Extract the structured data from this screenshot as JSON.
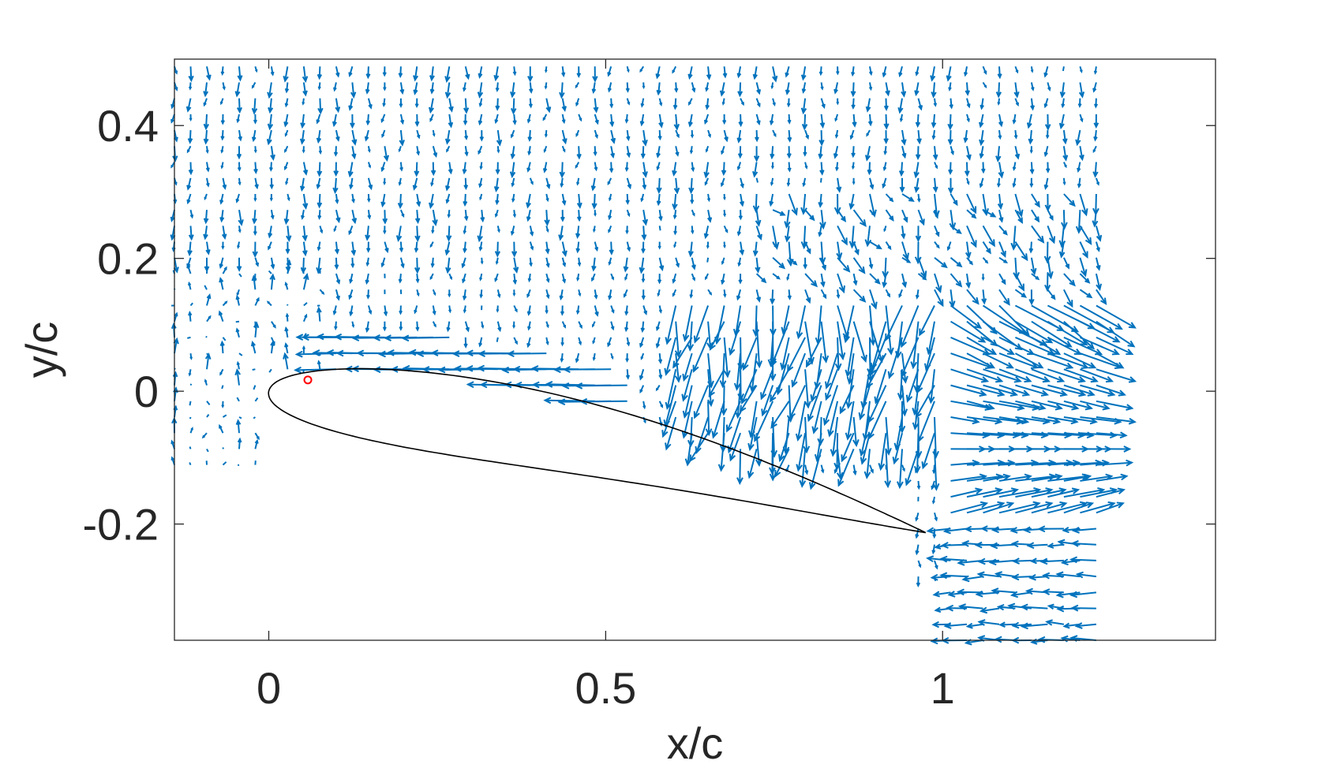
{
  "chart_data": {
    "type": "quiver",
    "xlabel": "x/c",
    "ylabel": "y/c",
    "xlim": [
      -0.14,
      1.405
    ],
    "ylim": [
      -0.375,
      0.5
    ],
    "xticks": [
      0,
      0.5,
      1
    ],
    "xtick_labels": [
      "0",
      "0.5",
      "1"
    ],
    "yticks": [
      -0.2,
      0,
      0.2,
      0.4
    ],
    "ytick_labels": [
      "-0.2",
      "0",
      "0.2",
      "0.4"
    ],
    "grid": false,
    "box": true,
    "colors": {
      "vectors": "#0072BD",
      "airfoil": "#000000",
      "marker": "#FF0000",
      "axes": "#262626"
    },
    "airfoil": {
      "leading_edge": [
        0.0,
        0.0
      ],
      "trailing_edge": [
        0.975,
        -0.213
      ],
      "max_thickness_fraction": 0.12,
      "description_series": "airfoil outline"
    },
    "marker": {
      "x": 0.058,
      "y": 0.017,
      "shape": "circle"
    },
    "vector_grid": {
      "x_start": -0.14,
      "x_end": 1.235,
      "dx": 0.024,
      "y_start": -0.375,
      "y_end": 0.5,
      "dy": 0.024
    }
  }
}
